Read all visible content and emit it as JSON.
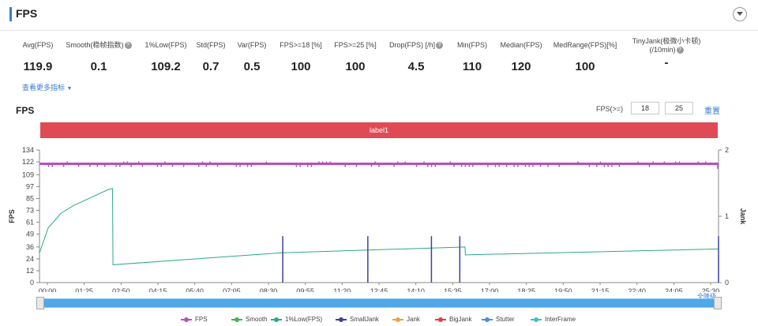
{
  "header": {
    "title": "FPS"
  },
  "metrics": [
    {
      "label": "Avg(FPS)",
      "value": "119.9",
      "help": false
    },
    {
      "label": "Smooth(稳帧指数)",
      "value": "0.1",
      "help": true
    },
    {
      "label": "1%Low(FPS)",
      "value": "109.2",
      "help": false
    },
    {
      "label": "Std(FPS)",
      "value": "0.7",
      "help": false
    },
    {
      "label": "Var(FPS)",
      "value": "0.5",
      "help": false
    },
    {
      "label": "FPS>=18 [%]",
      "value": "100",
      "help": false
    },
    {
      "label": "FPS>=25 [%]",
      "value": "100",
      "help": false
    },
    {
      "label": "Drop(FPS) [/h]",
      "value": "4.5",
      "help": true
    },
    {
      "label": "Min(FPS)",
      "value": "110",
      "help": false
    },
    {
      "label": "Median(FPS)",
      "value": "120",
      "help": false
    },
    {
      "label": "MedRange(FPS)[%]",
      "value": "100",
      "help": false
    },
    {
      "label": "TinyJank(极微小卡顿)",
      "label2": "(/10min)",
      "value": "-",
      "help": true
    }
  ],
  "more_link": "查看更多指标",
  "help_glyph": "?",
  "chart_header": {
    "title": "FPS",
    "threshold_label": "FPS(>=)",
    "threshold_1": "18",
    "threshold_2": "25",
    "reset": "重置"
  },
  "label_band": "label1",
  "reset_zoom": "全降级",
  "legend": [
    {
      "name": "FPS",
      "color": "#b84fc0"
    },
    {
      "name": "Smooth",
      "color": "#4caf50"
    },
    {
      "name": "1%Low(FPS)",
      "color": "#2aa88a"
    },
    {
      "name": "SmallJank",
      "color": "#3f3fa0"
    },
    {
      "name": "Jank",
      "color": "#f0a040"
    },
    {
      "name": "BigJank",
      "color": "#e04040"
    },
    {
      "name": "Stutter",
      "color": "#4a90d9"
    },
    {
      "name": "InterFrame",
      "color": "#40c0c0"
    }
  ],
  "chart_data": {
    "type": "line",
    "ylabel": "FPS",
    "y2label": "Jank",
    "yticks": [
      0,
      12,
      24,
      36,
      49,
      61,
      73,
      85,
      97,
      109,
      122,
      134
    ],
    "ylim": [
      0,
      134
    ],
    "y2ticks": [
      0,
      1,
      2
    ],
    "y2lim": [
      0,
      2
    ],
    "xticks": [
      "00:00",
      "01:25",
      "02:50",
      "04:15",
      "05:40",
      "07:05",
      "08:30",
      "09:55",
      "11:20",
      "12:45",
      "14:10",
      "15:35",
      "17:00",
      "18:25",
      "19:50",
      "21:15",
      "22:40",
      "24:05",
      "25:30"
    ],
    "xlim_seconds": [
      0,
      1580
    ],
    "fps": {
      "value": 120,
      "dips_to": 115
    },
    "low1pct_points": [
      [
        0,
        30
      ],
      [
        20,
        55
      ],
      [
        50,
        70
      ],
      [
        80,
        78
      ],
      [
        120,
        86
      ],
      [
        160,
        94
      ],
      [
        170,
        95
      ],
      [
        171,
        18
      ],
      [
        560,
        30
      ],
      [
        990,
        36
      ],
      [
        991,
        28
      ],
      [
        1580,
        34
      ]
    ],
    "small_jank": [
      {
        "t": 566,
        "value": 0.7
      },
      {
        "t": 764,
        "value": 0.7
      },
      {
        "t": 912,
        "value": 0.7
      },
      {
        "t": 978,
        "value": 0.7
      },
      {
        "t": 1580,
        "value": 0.7
      }
    ],
    "grid": true
  }
}
